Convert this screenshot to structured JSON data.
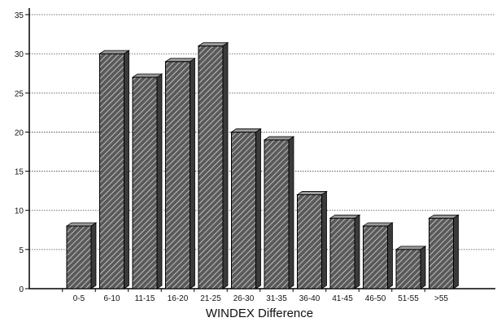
{
  "chart_data": {
    "type": "bar",
    "title": "",
    "xlabel": "WINDEX Difference",
    "ylabel": "",
    "categories": [
      "0-5",
      "6-10",
      "11-15",
      "16-20",
      "21-25",
      "26-30",
      "31-35",
      "36-40",
      "41-45",
      "46-50",
      "51-55",
      ">55"
    ],
    "values": [
      8,
      30,
      27,
      29,
      31,
      20,
      19,
      12,
      9,
      8,
      5,
      9
    ],
    "ylim": [
      0,
      35
    ],
    "yticks": [
      0,
      5,
      10,
      15,
      20,
      25,
      30,
      35
    ],
    "grid": true,
    "legend": "none",
    "style": {
      "bar_front_fill": "#5a5a5a",
      "bar_hatch": "#e6e6e6",
      "bar_side_fill": "#3a3a3a",
      "bar_top_fill": "#9a9a9a",
      "grid_color": "#444444",
      "axis_color": "#000000"
    }
  }
}
